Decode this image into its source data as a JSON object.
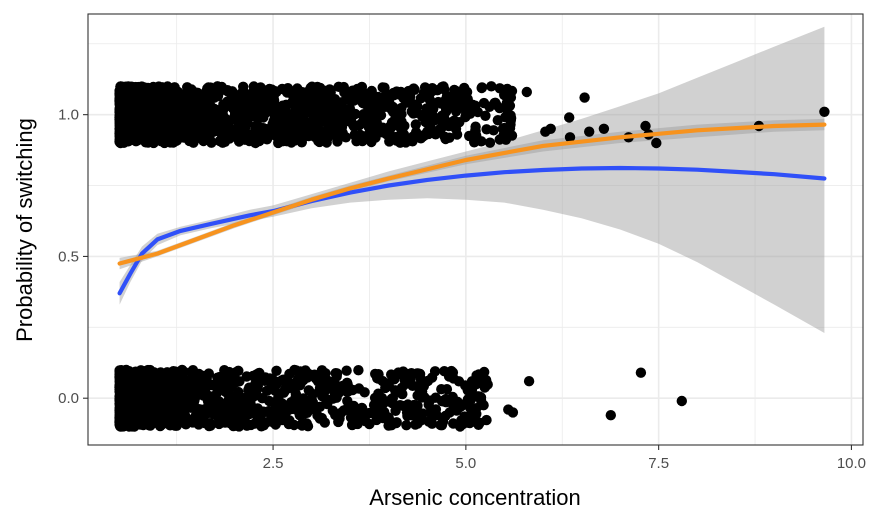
{
  "chart_data": {
    "type": "scatter",
    "title": "",
    "xlabel": "Arsenic concentration",
    "ylabel": "Probability of switching",
    "xlim": [
      0.1,
      10.15
    ],
    "ylim": [
      -0.165,
      1.355
    ],
    "x_ticks": [
      2.5,
      5.0,
      7.5,
      10.0
    ],
    "x_tick_labels": [
      "2.5",
      "5.0",
      "7.5",
      "10.0"
    ],
    "y_ticks": [
      0.0,
      0.5,
      1.0
    ],
    "y_tick_labels": [
      "0.0",
      "0.5",
      "1.0"
    ],
    "grid": true,
    "theme": "bw",
    "legend": "none",
    "colors": {
      "points": "#000000",
      "blue_fit": "#3050F8",
      "orange_fit": "#F7931E",
      "ribbon": "#999999",
      "grid": "#ebebeb",
      "panel_border": "#333333"
    },
    "points_outliers": {
      "y1": [
        [
          5.79,
          1.08
        ],
        [
          6.03,
          0.94
        ],
        [
          6.1,
          0.95
        ],
        [
          6.34,
          0.99
        ],
        [
          6.35,
          0.92
        ],
        [
          6.54,
          1.06
        ],
        [
          6.6,
          0.94
        ],
        [
          6.79,
          0.95
        ],
        [
          7.11,
          0.92
        ],
        [
          7.33,
          0.96
        ],
        [
          7.37,
          0.93
        ],
        [
          7.47,
          0.9
        ],
        [
          8.8,
          0.96
        ],
        [
          9.65,
          1.01
        ]
      ],
      "y0": [
        [
          4.84,
          0.07
        ],
        [
          4.62,
          -0.06
        ],
        [
          4.79,
          -0.05
        ],
        [
          5.04,
          -0.07
        ],
        [
          5.09,
          0.01
        ],
        [
          5.61,
          -0.05
        ],
        [
          5.55,
          -0.04
        ],
        [
          5.82,
          0.06
        ],
        [
          6.88,
          -0.06
        ],
        [
          7.27,
          0.09
        ],
        [
          7.8,
          -0.01
        ]
      ]
    },
    "jitter_height": 0.1,
    "dense_point_range": [
      0.51,
      5.6
    ],
    "series": [
      {
        "fit": "loess",
        "color": "#3050F8",
        "x": [
          0.51,
          0.65,
          0.8,
          1.0,
          1.3,
          1.7,
          2.2,
          2.5,
          3.0,
          3.5,
          4.0,
          4.5,
          5.0,
          5.5,
          6.0,
          6.5,
          7.0,
          7.5,
          8.0,
          8.5,
          9.0,
          9.65
        ],
        "y": [
          0.37,
          0.44,
          0.51,
          0.56,
          0.59,
          0.615,
          0.645,
          0.66,
          0.695,
          0.725,
          0.75,
          0.77,
          0.785,
          0.797,
          0.805,
          0.81,
          0.812,
          0.81,
          0.806,
          0.798,
          0.79,
          0.775
        ],
        "lo": [
          0.33,
          0.41,
          0.485,
          0.54,
          0.575,
          0.6,
          0.625,
          0.64,
          0.67,
          0.69,
          0.7,
          0.705,
          0.7,
          0.69,
          0.665,
          0.635,
          0.595,
          0.545,
          0.48,
          0.405,
          0.33,
          0.23
        ],
        "hi": [
          0.41,
          0.47,
          0.535,
          0.58,
          0.605,
          0.63,
          0.665,
          0.68,
          0.72,
          0.76,
          0.8,
          0.835,
          0.87,
          0.905,
          0.945,
          0.985,
          1.03,
          1.075,
          1.13,
          1.185,
          1.24,
          1.31
        ]
      },
      {
        "fit": "logistic",
        "color": "#F7931E",
        "x": [
          0.51,
          1.0,
          1.5,
          2.0,
          2.5,
          3.0,
          3.5,
          4.0,
          5.0,
          6.0,
          7.0,
          8.0,
          9.0,
          9.65
        ],
        "y": [
          0.475,
          0.51,
          0.56,
          0.61,
          0.655,
          0.7,
          0.74,
          0.775,
          0.84,
          0.89,
          0.92,
          0.945,
          0.96,
          0.965
        ],
        "lo": [
          0.455,
          0.5,
          0.55,
          0.6,
          0.645,
          0.69,
          0.73,
          0.765,
          0.825,
          0.87,
          0.9,
          0.92,
          0.94,
          0.945
        ],
        "hi": [
          0.495,
          0.52,
          0.57,
          0.62,
          0.665,
          0.71,
          0.75,
          0.785,
          0.855,
          0.91,
          0.94,
          0.965,
          0.98,
          0.985
        ]
      }
    ]
  }
}
